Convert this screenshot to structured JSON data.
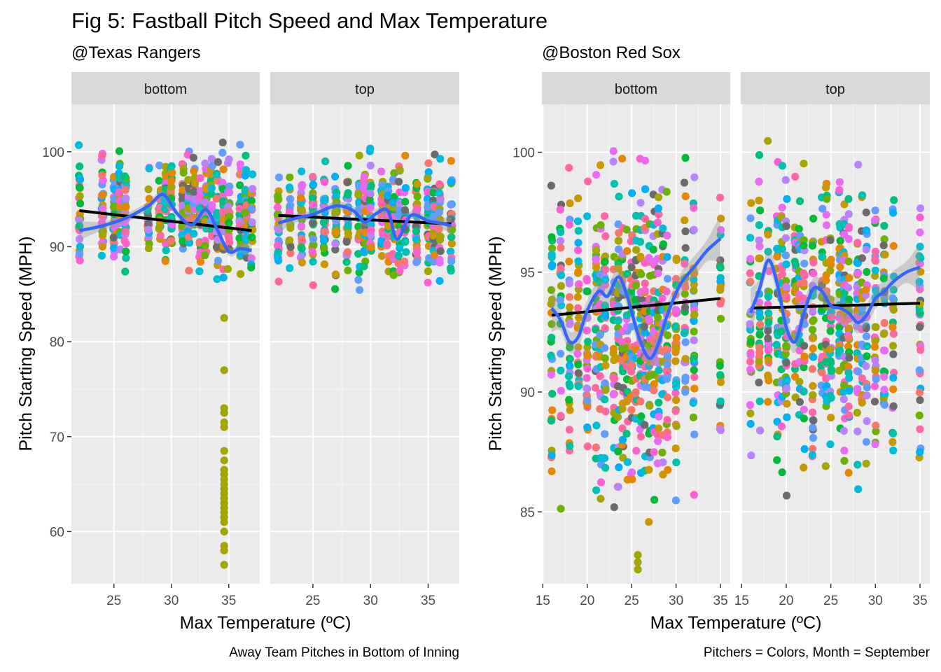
{
  "title": "Fig 5: Fastball Pitch Speed and Max Temperature",
  "captions": {
    "left": "Away Team Pitches in Bottom of Inning",
    "right": "Pitchers = Colors, Month = September"
  },
  "colors": {
    "panel_bg": "#ebebeb",
    "strip_bg": "#d9d9d9",
    "gridline": "#ffffff",
    "smooth_line": "#3366ff",
    "smooth_band": "#999999",
    "linear_fit": "#000000",
    "pitchers": [
      "#f8766d",
      "#e58700",
      "#c99800",
      "#a3a500",
      "#6bb100",
      "#00ba38",
      "#00bf7d",
      "#00c0af",
      "#00bcd8",
      "#00b0f6",
      "#619cff",
      "#b983ff",
      "#e76bf3",
      "#fd61d1",
      "#ff67a4",
      "#6b6b6b"
    ]
  },
  "chart_data": [
    {
      "type": "scatter",
      "subtitle": "@Texas Rangers",
      "xlabel": "Max Temperature (ºC)",
      "ylabel": "Pitch Starting Speed (MPH)",
      "xlim": [
        21.3,
        37.7
      ],
      "ylim": [
        54.5,
        105
      ],
      "x_ticks": [
        25,
        30,
        35
      ],
      "y_ticks": [
        60,
        70,
        80,
        90,
        100
      ],
      "grid": true,
      "facets": [
        {
          "name": "bottom",
          "temps": [
            22,
            24,
            25,
            25.5,
            26,
            28,
            29,
            29.5,
            30,
            31,
            31.5,
            32,
            32.5,
            33,
            33.5,
            34,
            34.5,
            35,
            36,
            36.5,
            37
          ],
          "speed_range": [
            85.5,
            102
          ],
          "outlier_x": 34.6,
          "outliers": [
            82.5,
            77,
            73,
            72.5,
            71.5,
            71,
            68.5,
            67.5,
            66.5,
            66,
            65.5,
            65,
            64.5,
            64,
            63.5,
            63,
            62.5,
            62,
            61.5,
            61,
            60,
            58.5,
            58,
            56.5
          ],
          "smooth": [
            [
              22,
              91.7
            ],
            [
              24,
              92.2
            ],
            [
              26,
              93.0
            ],
            [
              28,
              94.3
            ],
            [
              29.3,
              95.5
            ],
            [
              30.5,
              93.5
            ],
            [
              31.8,
              92.3
            ],
            [
              33,
              93.9
            ],
            [
              34,
              91.8
            ],
            [
              35,
              89.5
            ],
            [
              36,
              89.8
            ],
            [
              37,
              89.6
            ]
          ],
          "linear_fit": [
            [
              22,
              93.8
            ],
            [
              37,
              91.7
            ]
          ]
        },
        {
          "name": "top",
          "temps": [
            22,
            23,
            24,
            25,
            26,
            27,
            28,
            29,
            29.5,
            30,
            31,
            31.5,
            32,
            32.5,
            33,
            34,
            35,
            35.5,
            36,
            37
          ],
          "speed_range": [
            84.5,
            101
          ],
          "smooth": [
            [
              22,
              92.5
            ],
            [
              23.5,
              93.0
            ],
            [
              25,
              93.4
            ],
            [
              27,
              94.3
            ],
            [
              28.5,
              93.8
            ],
            [
              29.5,
              92.6
            ],
            [
              30.5,
              93.5
            ],
            [
              31.5,
              93.8
            ],
            [
              32.3,
              90.8
            ],
            [
              33.5,
              93.3
            ],
            [
              35,
              92.7
            ],
            [
              36,
              92.5
            ],
            [
              37,
              92.2
            ]
          ],
          "linear_fit": [
            [
              22,
              93.3
            ],
            [
              37,
              92.4
            ]
          ]
        }
      ]
    },
    {
      "type": "scatter",
      "subtitle": "@Boston Red Sox",
      "xlabel": "Max Temperature (ºC)",
      "ylabel": "Pitch Starting Speed (MPH)",
      "xlim": [
        14.9,
        36.1
      ],
      "ylim": [
        82,
        102
      ],
      "x_ticks": [
        15,
        20,
        25,
        30,
        35
      ],
      "y_ticks": [
        85,
        90,
        95,
        100
      ],
      "grid": true,
      "facets": [
        {
          "name": "bottom",
          "temps": [
            16,
            17,
            18,
            19,
            20,
            21,
            21.5,
            22,
            23,
            23.5,
            24,
            24.5,
            25,
            25.5,
            26,
            26.5,
            27,
            27.5,
            28,
            28.5,
            29,
            30,
            31,
            32,
            35
          ],
          "speed_range": [
            84,
            101
          ],
          "outlier_x": 25.7,
          "outliers": [
            83.2,
            82.9,
            82.6
          ],
          "smooth": [
            [
              16,
              93.5
            ],
            [
              17,
              93.0
            ],
            [
              18,
              92.1
            ],
            [
              19,
              92.3
            ],
            [
              20,
              93.4
            ],
            [
              21.3,
              94.2
            ],
            [
              22.3,
              94.0
            ],
            [
              23.5,
              94.8
            ],
            [
              24.5,
              94.0
            ],
            [
              25.8,
              92.3
            ],
            [
              27,
              91.4
            ],
            [
              28,
              92.0
            ],
            [
              29,
              93.2
            ],
            [
              30.5,
              94.5
            ],
            [
              32,
              95.2
            ],
            [
              33.5,
              95.9
            ],
            [
              35,
              96.4
            ]
          ],
          "linear_fit": [
            [
              16,
              93.2
            ],
            [
              35,
              93.9
            ]
          ]
        },
        {
          "name": "top",
          "temps": [
            16,
            17,
            18,
            19,
            19.5,
            20,
            21,
            21.5,
            22,
            23,
            24,
            24.5,
            25,
            26,
            26.5,
            27,
            28,
            28.5,
            29,
            30,
            31,
            32,
            35
          ],
          "speed_range": [
            85,
            101
          ],
          "smooth": [
            [
              16,
              93.3
            ],
            [
              17,
              94.3
            ],
            [
              18,
              95.5
            ],
            [
              19,
              94.5
            ],
            [
              20,
              92.7
            ],
            [
              21,
              92.1
            ],
            [
              22,
              93.3
            ],
            [
              23,
              94.3
            ],
            [
              24,
              94.2
            ],
            [
              25,
              93.6
            ],
            [
              26,
              93.5
            ],
            [
              27,
              93.3
            ],
            [
              28,
              92.9
            ],
            [
              29,
              93.2
            ],
            [
              30,
              93.9
            ],
            [
              31,
              94.2
            ],
            [
              32,
              94.6
            ],
            [
              33.5,
              95.0
            ],
            [
              35,
              95.2
            ]
          ],
          "linear_fit": [
            [
              16,
              93.5
            ],
            [
              35,
              93.7
            ]
          ]
        }
      ]
    }
  ]
}
